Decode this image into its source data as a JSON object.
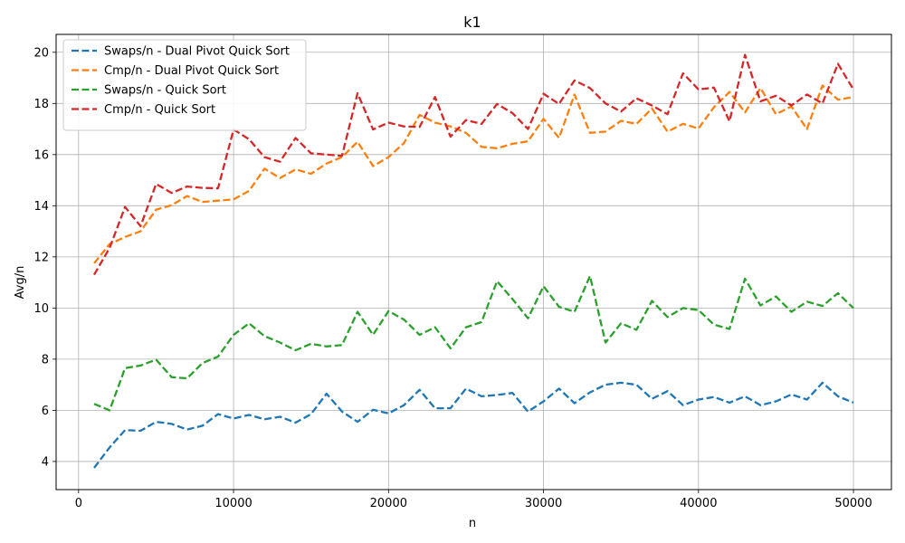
{
  "chart_data": {
    "type": "line",
    "title": "k1",
    "xlabel": "n",
    "ylabel": "Avg/n",
    "xlim": [
      -1450,
      52450
    ],
    "ylim": [
      2.9,
      20.7
    ],
    "xticks": [
      0,
      10000,
      20000,
      30000,
      40000,
      50000
    ],
    "yticks": [
      4,
      6,
      8,
      10,
      12,
      14,
      16,
      18,
      20
    ],
    "grid": true,
    "legend_position": "top-left",
    "line_style": "dashed",
    "x": [
      1000,
      2000,
      3000,
      4000,
      5000,
      6000,
      7000,
      8000,
      9000,
      10000,
      11000,
      12000,
      13000,
      14000,
      15000,
      16000,
      17000,
      18000,
      19000,
      20000,
      21000,
      22000,
      23000,
      24000,
      25000,
      26000,
      27000,
      28000,
      29000,
      30000,
      31000,
      32000,
      33000,
      34000,
      35000,
      36000,
      37000,
      38000,
      39000,
      40000,
      41000,
      42000,
      43000,
      44000,
      45000,
      46000,
      47000,
      48000,
      49000,
      50000
    ],
    "series": [
      {
        "name": "Swaps/n - Dual Pivot Quick Sort",
        "color": "#1f77b4",
        "values": [
          3.75,
          4.55,
          5.23,
          5.2,
          5.55,
          5.47,
          5.25,
          5.4,
          5.85,
          5.68,
          5.82,
          5.65,
          5.75,
          5.52,
          5.85,
          6.65,
          5.95,
          5.55,
          6.02,
          5.88,
          6.2,
          6.8,
          6.08,
          6.08,
          6.85,
          6.55,
          6.6,
          6.68,
          5.95,
          6.35,
          6.85,
          6.28,
          6.7,
          7.0,
          7.08,
          7.0,
          6.45,
          6.75,
          6.2,
          6.42,
          6.52,
          6.3,
          6.55,
          6.2,
          6.35,
          6.62,
          6.42,
          7.08,
          6.55,
          6.3
        ]
      },
      {
        "name": "Cmp/n - Dual Pivot Quick Sort",
        "color": "#ff7f0e",
        "values": [
          11.75,
          12.5,
          12.78,
          13.0,
          13.85,
          14.02,
          14.38,
          14.15,
          14.2,
          14.25,
          14.58,
          15.45,
          15.08,
          15.42,
          15.25,
          15.65,
          15.9,
          16.5,
          15.55,
          15.9,
          16.45,
          17.55,
          17.25,
          17.1,
          16.85,
          16.3,
          16.25,
          16.42,
          16.52,
          17.4,
          16.65,
          18.35,
          16.85,
          16.9,
          17.32,
          17.2,
          17.8,
          16.9,
          17.2,
          17.02,
          17.85,
          18.45,
          17.65,
          18.6,
          17.58,
          17.88,
          17.0,
          18.7,
          18.15,
          18.25
        ]
      },
      {
        "name": "Swaps/n - Quick Sort",
        "color": "#2ca02c",
        "values": [
          6.25,
          6.0,
          7.65,
          7.75,
          7.98,
          7.3,
          7.25,
          7.85,
          8.1,
          8.95,
          9.4,
          8.9,
          8.65,
          8.35,
          8.6,
          8.5,
          8.55,
          9.85,
          8.95,
          9.88,
          9.55,
          8.95,
          9.25,
          8.42,
          9.25,
          9.45,
          11.05,
          10.35,
          9.6,
          10.85,
          10.05,
          9.85,
          11.25,
          8.65,
          9.4,
          9.15,
          10.28,
          9.65,
          10.0,
          9.92,
          9.35,
          9.18,
          11.15,
          10.1,
          10.45,
          9.85,
          10.25,
          10.08,
          10.58,
          10.0
        ]
      },
      {
        "name": "Cmp/n - Quick Sort",
        "color": "#d62728",
        "values": [
          11.3,
          12.35,
          13.95,
          13.2,
          14.85,
          14.5,
          14.75,
          14.7,
          14.68,
          16.98,
          16.6,
          15.9,
          15.72,
          16.65,
          16.05,
          16.0,
          15.95,
          18.4,
          16.98,
          17.25,
          17.1,
          17.08,
          18.25,
          16.7,
          17.35,
          17.2,
          17.98,
          17.62,
          17.0,
          18.38,
          17.98,
          18.9,
          18.6,
          18.0,
          17.68,
          18.2,
          17.92,
          17.58,
          19.18,
          18.55,
          18.62,
          17.3,
          19.9,
          18.08,
          18.3,
          17.92,
          18.35,
          18.0,
          19.55,
          18.55
        ]
      }
    ]
  }
}
